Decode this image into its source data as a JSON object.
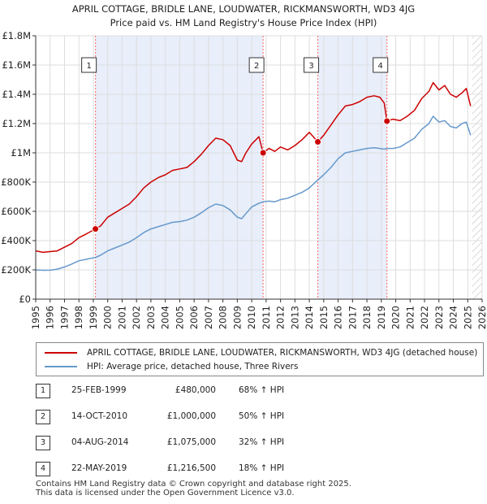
{
  "title_line1": "APRIL COTTAGE, BRIDLE LANE, LOUDWATER, RICKMANSWORTH, WD3 4JG",
  "title_line2": "Price paid vs. HM Land Registry's House Price Index (HPI)",
  "colors": {
    "property": "#cc0000",
    "hpi": "#6699cc",
    "shade": "#e8eefa",
    "vline": "#ff6666"
  },
  "chart_data": {
    "type": "line",
    "xlim": [
      1995,
      2026
    ],
    "ylim": [
      0,
      1800000
    ],
    "xticks": [
      1995,
      1996,
      1997,
      1998,
      1999,
      2000,
      2001,
      2002,
      2003,
      2004,
      2005,
      2006,
      2007,
      2008,
      2009,
      2010,
      2011,
      2012,
      2013,
      2014,
      2015,
      2016,
      2017,
      2018,
      2019,
      2020,
      2021,
      2022,
      2023,
      2024,
      2025,
      2026
    ],
    "yticks": [
      {
        "value": 0,
        "label": "£0"
      },
      {
        "value": 200000,
        "label": "£200K"
      },
      {
        "value": 400000,
        "label": "£400K"
      },
      {
        "value": 600000,
        "label": "£600K"
      },
      {
        "value": 800000,
        "label": "£800K"
      },
      {
        "value": 1000000,
        "label": "£1M"
      },
      {
        "value": 1200000,
        "label": "£1.2M"
      },
      {
        "value": 1400000,
        "label": "£1.4M"
      },
      {
        "value": 1600000,
        "label": "£1.6M"
      },
      {
        "value": 1800000,
        "label": "£1.8M"
      }
    ],
    "shaded_ranges": [
      [
        1999.15,
        2010.79
      ],
      [
        2014.59,
        2019.39
      ]
    ],
    "future_hatch_from": 2025.3,
    "series": [
      {
        "name": "APRIL COTTAGE, BRIDLE LANE, LOUDWATER, RICKMANSWORTH, WD3 4JG (detached house)",
        "color": "#cc0000",
        "points": [
          [
            1995.0,
            330000
          ],
          [
            1995.5,
            320000
          ],
          [
            1996.0,
            325000
          ],
          [
            1996.5,
            330000
          ],
          [
            1997.0,
            355000
          ],
          [
            1997.5,
            380000
          ],
          [
            1998.0,
            420000
          ],
          [
            1998.5,
            445000
          ],
          [
            1999.15,
            480000
          ],
          [
            1999.5,
            500000
          ],
          [
            2000.0,
            560000
          ],
          [
            2000.5,
            590000
          ],
          [
            2001.0,
            620000
          ],
          [
            2001.5,
            650000
          ],
          [
            2002.0,
            700000
          ],
          [
            2002.5,
            760000
          ],
          [
            2003.0,
            800000
          ],
          [
            2003.5,
            830000
          ],
          [
            2004.0,
            850000
          ],
          [
            2004.5,
            880000
          ],
          [
            2005.0,
            890000
          ],
          [
            2005.5,
            900000
          ],
          [
            2006.0,
            940000
          ],
          [
            2006.5,
            990000
          ],
          [
            2007.0,
            1050000
          ],
          [
            2007.5,
            1100000
          ],
          [
            2008.0,
            1090000
          ],
          [
            2008.5,
            1050000
          ],
          [
            2009.0,
            950000
          ],
          [
            2009.3,
            940000
          ],
          [
            2009.6,
            1000000
          ],
          [
            2010.0,
            1060000
          ],
          [
            2010.5,
            1110000
          ],
          [
            2010.79,
            1000000
          ],
          [
            2011.2,
            1030000
          ],
          [
            2011.6,
            1010000
          ],
          [
            2012.0,
            1040000
          ],
          [
            2012.5,
            1020000
          ],
          [
            2013.0,
            1050000
          ],
          [
            2013.5,
            1090000
          ],
          [
            2014.0,
            1140000
          ],
          [
            2014.59,
            1075000
          ],
          [
            2015.0,
            1120000
          ],
          [
            2015.5,
            1190000
          ],
          [
            2016.0,
            1260000
          ],
          [
            2016.5,
            1320000
          ],
          [
            2017.0,
            1330000
          ],
          [
            2017.5,
            1350000
          ],
          [
            2018.0,
            1380000
          ],
          [
            2018.5,
            1390000
          ],
          [
            2018.9,
            1380000
          ],
          [
            2019.2,
            1340000
          ],
          [
            2019.39,
            1216500
          ],
          [
            2019.8,
            1230000
          ],
          [
            2020.3,
            1220000
          ],
          [
            2020.8,
            1250000
          ],
          [
            2021.3,
            1290000
          ],
          [
            2021.8,
            1370000
          ],
          [
            2022.3,
            1420000
          ],
          [
            2022.6,
            1480000
          ],
          [
            2023.0,
            1430000
          ],
          [
            2023.4,
            1460000
          ],
          [
            2023.8,
            1400000
          ],
          [
            2024.2,
            1380000
          ],
          [
            2024.6,
            1410000
          ],
          [
            2024.9,
            1440000
          ],
          [
            2025.2,
            1320000
          ]
        ]
      },
      {
        "name": "HPI: Average price, detached house, Three Rivers",
        "color": "#6699cc",
        "points": [
          [
            1995.0,
            200000
          ],
          [
            1995.5,
            197000
          ],
          [
            1996.0,
            198000
          ],
          [
            1996.5,
            205000
          ],
          [
            1997.0,
            220000
          ],
          [
            1997.5,
            240000
          ],
          [
            1998.0,
            262000
          ],
          [
            1998.5,
            272000
          ],
          [
            1999.15,
            285000
          ],
          [
            1999.5,
            300000
          ],
          [
            2000.0,
            330000
          ],
          [
            2000.5,
            350000
          ],
          [
            2001.0,
            370000
          ],
          [
            2001.5,
            390000
          ],
          [
            2002.0,
            420000
          ],
          [
            2002.5,
            455000
          ],
          [
            2003.0,
            480000
          ],
          [
            2003.5,
            495000
          ],
          [
            2004.0,
            510000
          ],
          [
            2004.5,
            525000
          ],
          [
            2005.0,
            530000
          ],
          [
            2005.5,
            540000
          ],
          [
            2006.0,
            560000
          ],
          [
            2006.5,
            590000
          ],
          [
            2007.0,
            625000
          ],
          [
            2007.5,
            650000
          ],
          [
            2008.0,
            640000
          ],
          [
            2008.5,
            610000
          ],
          [
            2009.0,
            560000
          ],
          [
            2009.3,
            550000
          ],
          [
            2009.6,
            585000
          ],
          [
            2010.0,
            630000
          ],
          [
            2010.5,
            655000
          ],
          [
            2010.79,
            665000
          ],
          [
            2011.2,
            670000
          ],
          [
            2011.6,
            665000
          ],
          [
            2012.0,
            680000
          ],
          [
            2012.5,
            690000
          ],
          [
            2013.0,
            710000
          ],
          [
            2013.5,
            730000
          ],
          [
            2014.0,
            760000
          ],
          [
            2014.59,
            815000
          ],
          [
            2015.0,
            850000
          ],
          [
            2015.5,
            900000
          ],
          [
            2016.0,
            960000
          ],
          [
            2016.5,
            1000000
          ],
          [
            2017.0,
            1010000
          ],
          [
            2017.5,
            1020000
          ],
          [
            2018.0,
            1030000
          ],
          [
            2018.5,
            1035000
          ],
          [
            2018.9,
            1030000
          ],
          [
            2019.2,
            1025000
          ],
          [
            2019.39,
            1030000
          ],
          [
            2019.8,
            1030000
          ],
          [
            2020.3,
            1040000
          ],
          [
            2020.8,
            1070000
          ],
          [
            2021.3,
            1100000
          ],
          [
            2021.8,
            1160000
          ],
          [
            2022.3,
            1200000
          ],
          [
            2022.6,
            1250000
          ],
          [
            2023.0,
            1210000
          ],
          [
            2023.4,
            1220000
          ],
          [
            2023.8,
            1180000
          ],
          [
            2024.2,
            1170000
          ],
          [
            2024.6,
            1200000
          ],
          [
            2024.9,
            1210000
          ],
          [
            2025.2,
            1120000
          ]
        ]
      }
    ],
    "sales": [
      {
        "label": "1",
        "x": 1999.15,
        "value": 480000
      },
      {
        "label": "2",
        "x": 2010.79,
        "value": 1000000
      },
      {
        "label": "3",
        "x": 2014.59,
        "value": 1075000
      },
      {
        "label": "4",
        "x": 2019.39,
        "value": 1216500
      }
    ]
  },
  "legend": {
    "property_label": "APRIL COTTAGE, BRIDLE LANE, LOUDWATER, RICKMANSWORTH, WD3 4JG (detached house)",
    "hpi_label": "HPI: Average price, detached house, Three Rivers"
  },
  "transactions": [
    {
      "num": "1",
      "date": "25-FEB-1999",
      "price": "£480,000",
      "hpi": "68% ↑ HPI"
    },
    {
      "num": "2",
      "date": "14-OCT-2010",
      "price": "£1,000,000",
      "hpi": "50% ↑ HPI"
    },
    {
      "num": "3",
      "date": "04-AUG-2014",
      "price": "£1,075,000",
      "hpi": "32% ↑ HPI"
    },
    {
      "num": "4",
      "date": "22-MAY-2019",
      "price": "£1,216,500",
      "hpi": "18% ↑ HPI"
    }
  ],
  "footer_line1": "Contains HM Land Registry data © Crown copyright and database right 2025.",
  "footer_line2": "This data is licensed under the Open Government Licence v3.0."
}
